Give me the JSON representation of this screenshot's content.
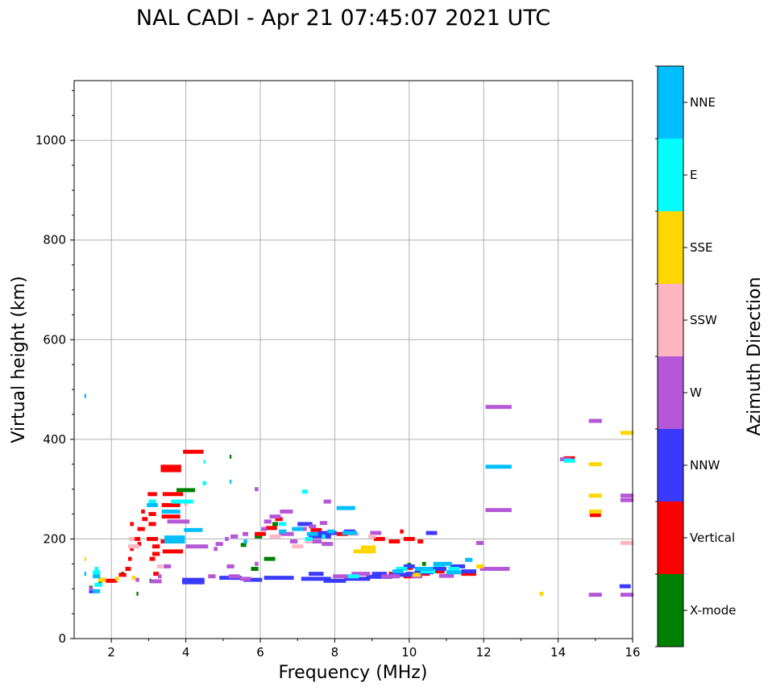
{
  "chart_data": {
    "type": "scatter",
    "title": "NAL CADI - Apr 21 07:45:07 2021 UTC",
    "xlabel": "Frequency (MHz)",
    "ylabel": "Virtual height (km)",
    "xlim": [
      1,
      16
    ],
    "ylim": [
      0,
      1120
    ],
    "xticks": [
      2,
      4,
      6,
      8,
      10,
      12,
      14,
      16
    ],
    "yticks": [
      0,
      200,
      400,
      600,
      800,
      1000
    ],
    "grid": true,
    "colorbar": {
      "label": "Azimuth Direction",
      "categories": [
        {
          "name": "X-mode",
          "color": "#008000"
        },
        {
          "name": "Vertical",
          "color": "#ff0000"
        },
        {
          "name": "NNW",
          "color": "#3a3aff"
        },
        {
          "name": "W",
          "color": "#b657d8"
        },
        {
          "name": "SSW",
          "color": "#ffb6c1"
        },
        {
          "name": "SSE",
          "color": "#ffd700"
        },
        {
          "name": "E",
          "color": "#00ffff"
        },
        {
          "name": "NNE",
          "color": "#00bfff"
        }
      ]
    },
    "series": [
      {
        "name": "X-mode",
        "points": [
          [
            1.45,
            102,
            0.1
          ],
          [
            1.7,
            110,
            0.1
          ],
          [
            2.3,
            130,
            0.08
          ],
          [
            3.05,
            116,
            0.05
          ],
          [
            4.0,
            298,
            0.5
          ],
          [
            5.2,
            365,
            0.05
          ],
          [
            5.55,
            188,
            0.15
          ],
          [
            5.85,
            140,
            0.2
          ],
          [
            5.95,
            205,
            0.2
          ],
          [
            6.25,
            160,
            0.3
          ],
          [
            6.4,
            230,
            0.15
          ],
          [
            10.0,
            148,
            0.1
          ],
          [
            10.4,
            150,
            0.1
          ],
          [
            10.7,
            140,
            0.1
          ],
          [
            2.7,
            90,
            0.05
          ]
        ]
      },
      {
        "name": "Vertical",
        "points": [
          [
            1.75,
            118,
            0.2
          ],
          [
            2.0,
            116,
            0.3
          ],
          [
            2.3,
            128,
            0.2
          ],
          [
            2.45,
            140,
            0.15
          ],
          [
            2.5,
            160,
            0.1
          ],
          [
            2.55,
            180,
            0.1
          ],
          [
            2.55,
            230,
            0.1
          ],
          [
            2.7,
            200,
            0.15
          ],
          [
            2.75,
            190,
            0.1
          ],
          [
            2.8,
            220,
            0.2
          ],
          [
            2.85,
            255,
            0.1
          ],
          [
            2.9,
            240,
            0.15
          ],
          [
            3.1,
            290,
            0.25
          ],
          [
            3.1,
            250,
            0.2
          ],
          [
            3.1,
            230,
            0.2
          ],
          [
            3.1,
            200,
            0.3
          ],
          [
            3.2,
            185,
            0.2
          ],
          [
            3.2,
            170,
            0.2
          ],
          [
            3.1,
            160,
            0.15
          ],
          [
            3.2,
            130,
            0.15
          ],
          [
            3.6,
            345,
            0.55
          ],
          [
            3.6,
            338,
            0.55
          ],
          [
            3.65,
            290,
            0.55
          ],
          [
            3.6,
            268,
            0.5
          ],
          [
            3.6,
            245,
            0.5
          ],
          [
            3.6,
            195,
            0.55
          ],
          [
            3.65,
            175,
            0.55
          ],
          [
            4.2,
            375,
            0.55
          ],
          [
            6.0,
            210,
            0.3
          ],
          [
            6.3,
            222,
            0.3
          ],
          [
            6.5,
            240,
            0.2
          ],
          [
            7.5,
            218,
            0.3
          ],
          [
            8.2,
            210,
            0.3
          ],
          [
            9.2,
            200,
            0.3
          ],
          [
            9.6,
            195,
            0.3
          ],
          [
            10.0,
            200,
            0.3
          ],
          [
            10.3,
            195,
            0.15
          ],
          [
            9.8,
            215,
            0.1
          ],
          [
            10.0,
            142,
            0.2
          ],
          [
            10.0,
            125,
            0.3
          ],
          [
            10.4,
            130,
            0.3
          ],
          [
            10.8,
            135,
            0.3
          ],
          [
            11.6,
            130,
            0.4
          ],
          [
            14.3,
            362,
            0.3
          ],
          [
            15.0,
            248,
            0.3
          ],
          [
            9.6,
            130,
            0.3
          ]
        ]
      },
      {
        "name": "NNW",
        "points": [
          [
            1.5,
            95,
            0.2
          ],
          [
            4.2,
            118,
            0.6
          ],
          [
            4.2,
            113,
            0.6
          ],
          [
            5.2,
            122,
            0.6
          ],
          [
            5.8,
            118,
            0.5
          ],
          [
            6.5,
            122,
            0.8
          ],
          [
            7.5,
            120,
            0.8
          ],
          [
            7.5,
            130,
            0.4
          ],
          [
            8.0,
            116,
            0.6
          ],
          [
            8.6,
            120,
            0.7
          ],
          [
            9.2,
            124,
            0.7
          ],
          [
            9.2,
            130,
            0.4
          ],
          [
            9.8,
            128,
            0.6
          ],
          [
            10.4,
            133,
            0.5
          ],
          [
            10.8,
            140,
            0.4
          ],
          [
            11.3,
            145,
            0.4
          ],
          [
            11.6,
            135,
            0.4
          ],
          [
            10.1,
            130,
            0.4
          ],
          [
            7.6,
            205,
            0.6
          ],
          [
            7.8,
            212,
            0.5
          ],
          [
            7.2,
            230,
            0.4
          ],
          [
            8.4,
            215,
            0.3
          ],
          [
            10.0,
            145,
            0.3
          ],
          [
            15.8,
            105,
            0.3
          ],
          [
            10.6,
            212,
            0.3
          ]
        ]
      },
      {
        "name": "W",
        "points": [
          [
            1.45,
            100,
            0.1
          ],
          [
            2.7,
            118,
            0.1
          ],
          [
            3.2,
            115,
            0.3
          ],
          [
            3.3,
            125,
            0.1
          ],
          [
            3.8,
            235,
            0.6
          ],
          [
            4.3,
            185,
            0.6
          ],
          [
            4.8,
            180,
            0.1
          ],
          [
            4.7,
            125,
            0.2
          ],
          [
            4.9,
            190,
            0.2
          ],
          [
            5.1,
            200,
            0.1
          ],
          [
            5.3,
            205,
            0.2
          ],
          [
            5.3,
            125,
            0.3
          ],
          [
            5.2,
            145,
            0.2
          ],
          [
            5.6,
            120,
            0.3
          ],
          [
            5.6,
            210,
            0.15
          ],
          [
            5.9,
            150,
            0.1
          ],
          [
            5.9,
            300,
            0.1
          ],
          [
            6.1,
            220,
            0.15
          ],
          [
            6.2,
            235,
            0.2
          ],
          [
            6.4,
            245,
            0.3
          ],
          [
            6.7,
            255,
            0.35
          ],
          [
            6.7,
            210,
            0.4
          ],
          [
            6.9,
            195,
            0.2
          ],
          [
            7.1,
            220,
            0.3
          ],
          [
            7.4,
            225,
            0.2
          ],
          [
            7.5,
            195,
            0.3
          ],
          [
            7.8,
            190,
            0.3
          ],
          [
            7.8,
            275,
            0.2
          ],
          [
            7.7,
            232,
            0.2
          ],
          [
            8.3,
            125,
            0.7
          ],
          [
            8.7,
            130,
            0.5
          ],
          [
            9.1,
            212,
            0.3
          ],
          [
            9.5,
            125,
            0.5
          ],
          [
            10.2,
            125,
            0.3
          ],
          [
            11.0,
            126,
            0.4
          ],
          [
            11.9,
            192,
            0.2
          ],
          [
            12.4,
            465,
            0.7
          ],
          [
            12.4,
            258,
            0.7
          ],
          [
            12.3,
            140,
            0.8
          ],
          [
            14.2,
            360,
            0.3
          ],
          [
            15.0,
            437,
            0.35
          ],
          [
            15.0,
            88,
            0.35
          ],
          [
            15.85,
            287,
            0.35
          ],
          [
            15.85,
            278,
            0.35
          ],
          [
            15.85,
            88,
            0.35
          ],
          [
            3.5,
            145,
            0.2
          ]
        ]
      },
      {
        "name": "SSW",
        "points": [
          [
            2.6,
            185,
            0.3
          ],
          [
            2.55,
            200,
            0.15
          ],
          [
            3.3,
            145,
            0.15
          ],
          [
            6.4,
            205,
            0.3
          ],
          [
            7.0,
            185,
            0.3
          ],
          [
            7.3,
            195,
            0.2
          ],
          [
            8.5,
            210,
            0.3
          ],
          [
            9.0,
            205,
            0.2
          ],
          [
            15.85,
            192,
            0.35
          ],
          [
            4.0,
            270,
            0.1
          ]
        ]
      },
      {
        "name": "SSE",
        "points": [
          [
            1.75,
            118,
            0.2
          ],
          [
            1.3,
            160,
            0.05
          ],
          [
            2.15,
            120,
            0.1
          ],
          [
            2.6,
            122,
            0.1
          ],
          [
            8.8,
            175,
            0.6
          ],
          [
            8.9,
            183,
            0.4
          ],
          [
            13.55,
            90,
            0.1
          ],
          [
            15.0,
            350,
            0.35
          ],
          [
            15.0,
            287,
            0.35
          ],
          [
            15.0,
            255,
            0.35
          ],
          [
            15.85,
            413,
            0.35
          ],
          [
            11.9,
            145,
            0.2
          ],
          [
            10.2,
            128,
            0.2
          ]
        ]
      },
      {
        "name": "E",
        "points": [
          [
            1.6,
            133,
            0.2
          ],
          [
            1.65,
            108,
            0.2
          ],
          [
            3.1,
            275,
            0.2
          ],
          [
            3.9,
            275,
            0.6
          ],
          [
            4.5,
            312,
            0.1
          ],
          [
            4.5,
            355,
            0.05
          ],
          [
            7.3,
            200,
            0.2
          ],
          [
            7.2,
            295,
            0.15
          ],
          [
            7.7,
            205,
            0.1
          ],
          [
            8.5,
            125,
            0.3
          ],
          [
            9.8,
            140,
            0.3
          ],
          [
            10.5,
            135,
            0.4
          ],
          [
            10.8,
            148,
            0.3
          ],
          [
            11.2,
            140,
            0.3
          ],
          [
            14.3,
            357,
            0.3
          ],
          [
            6.6,
            230,
            0.2
          ],
          [
            1.6,
            140,
            0.1
          ]
        ]
      },
      {
        "name": "NNE",
        "points": [
          [
            1.3,
            487,
            0.05
          ],
          [
            1.6,
            125,
            0.2
          ],
          [
            1.6,
            95,
            0.2
          ],
          [
            3.1,
            268,
            0.3
          ],
          [
            3.6,
            255,
            0.5
          ],
          [
            3.7,
            203,
            0.55
          ],
          [
            3.7,
            195,
            0.55
          ],
          [
            4.2,
            218,
            0.5
          ],
          [
            5.2,
            315,
            0.05
          ],
          [
            5.6,
            195,
            0.1
          ],
          [
            6.6,
            215,
            0.2
          ],
          [
            7.0,
            220,
            0.3
          ],
          [
            7.4,
            210,
            0.3
          ],
          [
            7.9,
            215,
            0.2
          ],
          [
            8.3,
            262,
            0.5
          ],
          [
            8.4,
            212,
            0.4
          ],
          [
            9.7,
            135,
            0.3
          ],
          [
            10.4,
            140,
            0.5
          ],
          [
            10.9,
            150,
            0.5
          ],
          [
            11.2,
            133,
            0.4
          ],
          [
            11.6,
            158,
            0.2
          ],
          [
            12.4,
            345,
            0.7
          ],
          [
            1.3,
            130,
            0.05
          ]
        ]
      }
    ]
  }
}
